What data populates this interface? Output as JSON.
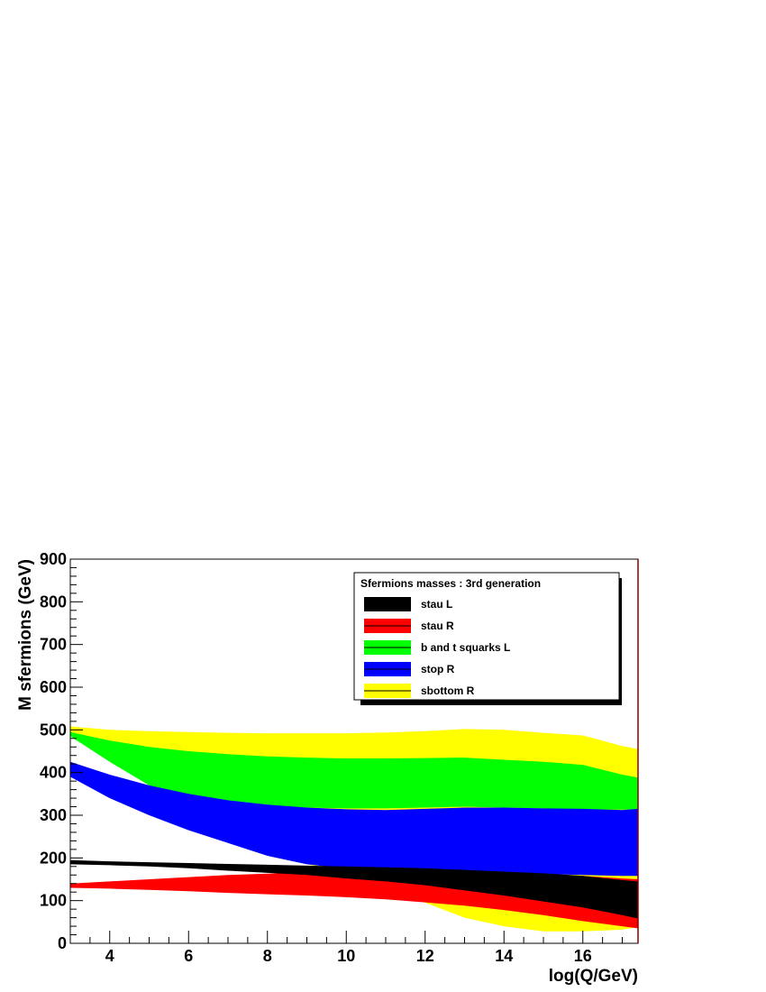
{
  "chart_data": {
    "type": "area",
    "title": "",
    "xlabel": "log(Q/GeV)",
    "ylabel": "M sfermions (GeV)",
    "xlim": [
      3,
      17.4
    ],
    "ylim": [
      0,
      900
    ],
    "xticks": [
      4,
      6,
      8,
      10,
      12,
      14,
      16
    ],
    "yticks": [
      0,
      100,
      200,
      300,
      400,
      500,
      600,
      700,
      800,
      900
    ],
    "grid": false,
    "legend": {
      "title": "Sfermions masses : 3rd generation",
      "placement": "top-right"
    },
    "series": [
      {
        "name": "sbottom R",
        "color": "#ffff00",
        "x": [
          3,
          4,
          5,
          6,
          7,
          8,
          9,
          10,
          11,
          12,
          13,
          14,
          15,
          16,
          17,
          17.4
        ],
        "upper": [
          508,
          500,
          497,
          495,
          493,
          492,
          492,
          492,
          494,
          497,
          502,
          500,
          493,
          487,
          462,
          455
        ],
        "lower": [
          490,
          435,
          375,
          325,
          260,
          215,
          185,
          165,
          130,
          95,
          60,
          40,
          28,
          28,
          32,
          38
        ]
      },
      {
        "name": "b and t squarks L",
        "color": "#00ff00",
        "x": [
          3,
          4,
          5,
          6,
          7,
          8,
          9,
          10,
          11,
          12,
          13,
          14,
          15,
          16,
          17,
          17.4
        ],
        "upper": [
          495,
          475,
          460,
          450,
          443,
          438,
          435,
          433,
          433,
          434,
          435,
          430,
          425,
          418,
          395,
          388
        ],
        "lower": [
          485,
          425,
          370,
          345,
          330,
          322,
          318,
          316,
          316,
          318,
          320,
          318,
          316,
          313,
          313,
          313
        ]
      },
      {
        "name": "stop R",
        "color": "#0000ff",
        "x": [
          3,
          4,
          5,
          6,
          7,
          8,
          9,
          10,
          11,
          12,
          13,
          14,
          15,
          16,
          17,
          17.4
        ],
        "upper": [
          425,
          395,
          370,
          350,
          335,
          325,
          318,
          314,
          312,
          315,
          318,
          318,
          316,
          315,
          312,
          315
        ],
        "lower": [
          390,
          340,
          300,
          265,
          235,
          205,
          185,
          175,
          170,
          168,
          166,
          164,
          162,
          160,
          158,
          158
        ]
      },
      {
        "name": "stau R",
        "color": "#ff0000",
        "x": [
          3,
          4,
          5,
          6,
          7,
          8,
          9,
          10,
          11,
          12,
          13,
          14,
          15,
          16,
          17,
          17.4
        ],
        "upper": [
          140,
          145,
          150,
          155,
          160,
          163,
          166,
          168,
          169,
          169,
          168,
          166,
          163,
          158,
          152,
          150
        ],
        "lower": [
          130,
          128,
          125,
          122,
          118,
          115,
          112,
          108,
          103,
          96,
          88,
          78,
          66,
          52,
          40,
          35
        ]
      },
      {
        "name": "stau L",
        "color": "#000000",
        "x": [
          3,
          4,
          5,
          6,
          7,
          8,
          9,
          10,
          11,
          12,
          13,
          14,
          15,
          16,
          17,
          17.4
        ],
        "upper": [
          195,
          192,
          190,
          188,
          186,
          184,
          182,
          180,
          178,
          176,
          172,
          168,
          164,
          158,
          148,
          145
        ],
        "lower": [
          185,
          183,
          180,
          176,
          170,
          165,
          160,
          152,
          145,
          136,
          124,
          112,
          98,
          84,
          66,
          58
        ]
      }
    ],
    "legend_order": [
      "stau L",
      "stau R",
      "b and t squarks L",
      "stop R",
      "sbottom R"
    ]
  }
}
